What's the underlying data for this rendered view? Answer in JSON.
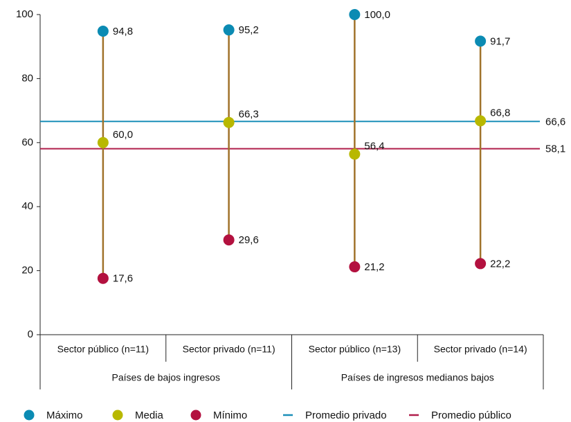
{
  "chart_data": {
    "type": "range",
    "categories": [
      "Sector público (n=11)",
      "Sector privado (n=11)",
      "Sector público (n=13)",
      "Sector privado (n=14)"
    ],
    "groups": [
      {
        "label": "Países de bajos ingresos",
        "span": 2
      },
      {
        "label": "Países de ingresos medianos bajos",
        "span": 2
      }
    ],
    "series": [
      {
        "name": "Máximo",
        "color": "#0b8bb3",
        "values": [
          94.8,
          95.2,
          100,
          91.7
        ],
        "value_labels": [
          "94,8",
          "95,2",
          "100,0",
          "91,7"
        ]
      },
      {
        "name": "Media",
        "color": "#b8b800",
        "values": [
          60,
          66.3,
          56.4,
          66.8
        ],
        "value_labels": [
          "60,0",
          "66,3",
          "56,4",
          "66,8"
        ]
      },
      {
        "name": "Mínimo",
        "color": "#b3113f",
        "values": [
          17.6,
          29.6,
          21.2,
          22.2
        ],
        "value_labels": [
          "17,6",
          "29,6",
          "21,2",
          "22,2"
        ]
      }
    ],
    "reference_lines": [
      {
        "name": "Promedio privado",
        "value": 66.6,
        "value_label": "66,6",
        "color": "#1a8fb8"
      },
      {
        "name": "Promedio público",
        "value": 58.1,
        "value_label": "58,1",
        "color": "#b01d4a"
      }
    ],
    "stem_color": "#a0722a",
    "ylim": [
      0,
      100
    ],
    "yticks": [
      0,
      20,
      40,
      60,
      80,
      100
    ]
  }
}
